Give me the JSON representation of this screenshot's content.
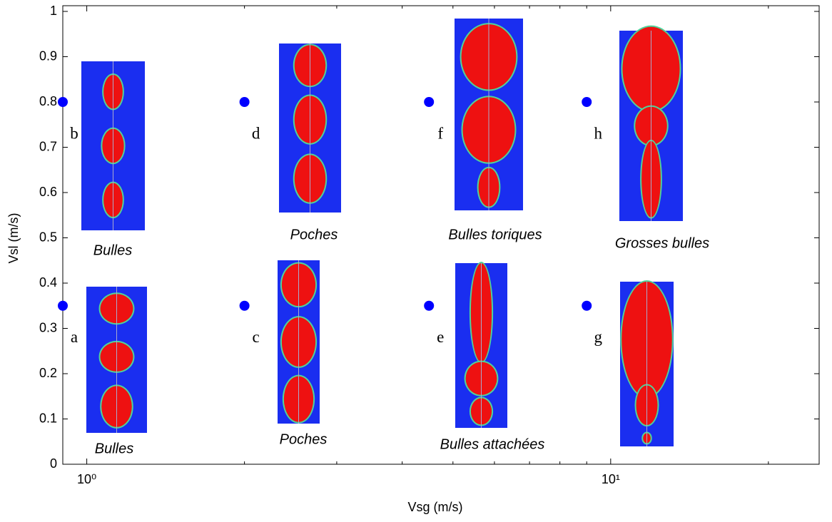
{
  "chart_data": {
    "type": "scatter",
    "xlabel": "Vsg (m/s)",
    "ylabel": "Vsl (m/s)",
    "xscale": "log",
    "xlim": [
      0.9,
      25
    ],
    "ylim": [
      0,
      1
    ],
    "xticks": [
      {
        "value": 1,
        "label": "10⁰"
      },
      {
        "value": 10,
        "label": "10¹"
      }
    ],
    "xminor_ticks": [
      2,
      3,
      4,
      5,
      6,
      7,
      8,
      9,
      20
    ],
    "yticks": [
      0,
      0.1,
      0.2,
      0.3,
      0.4,
      0.5,
      0.6,
      0.7,
      0.8,
      0.9,
      1
    ],
    "series": [
      {
        "color": "#0000ff",
        "x": [
          0.9,
          0.9,
          2,
          2,
          4.5,
          4.5,
          9,
          9
        ],
        "values": [
          0.35,
          0.8,
          0.35,
          0.8,
          0.35,
          0.8,
          0.35,
          0.8
        ],
        "point_labels": [
          "a",
          "b",
          "c",
          "d",
          "e",
          "f",
          "g",
          "h"
        ]
      }
    ],
    "annotations": [
      "Bulles",
      "Poches",
      "Bulles toriques",
      "Grosses bulles",
      "Bulles",
      "Poches",
      "Bulles attachées"
    ]
  }
}
